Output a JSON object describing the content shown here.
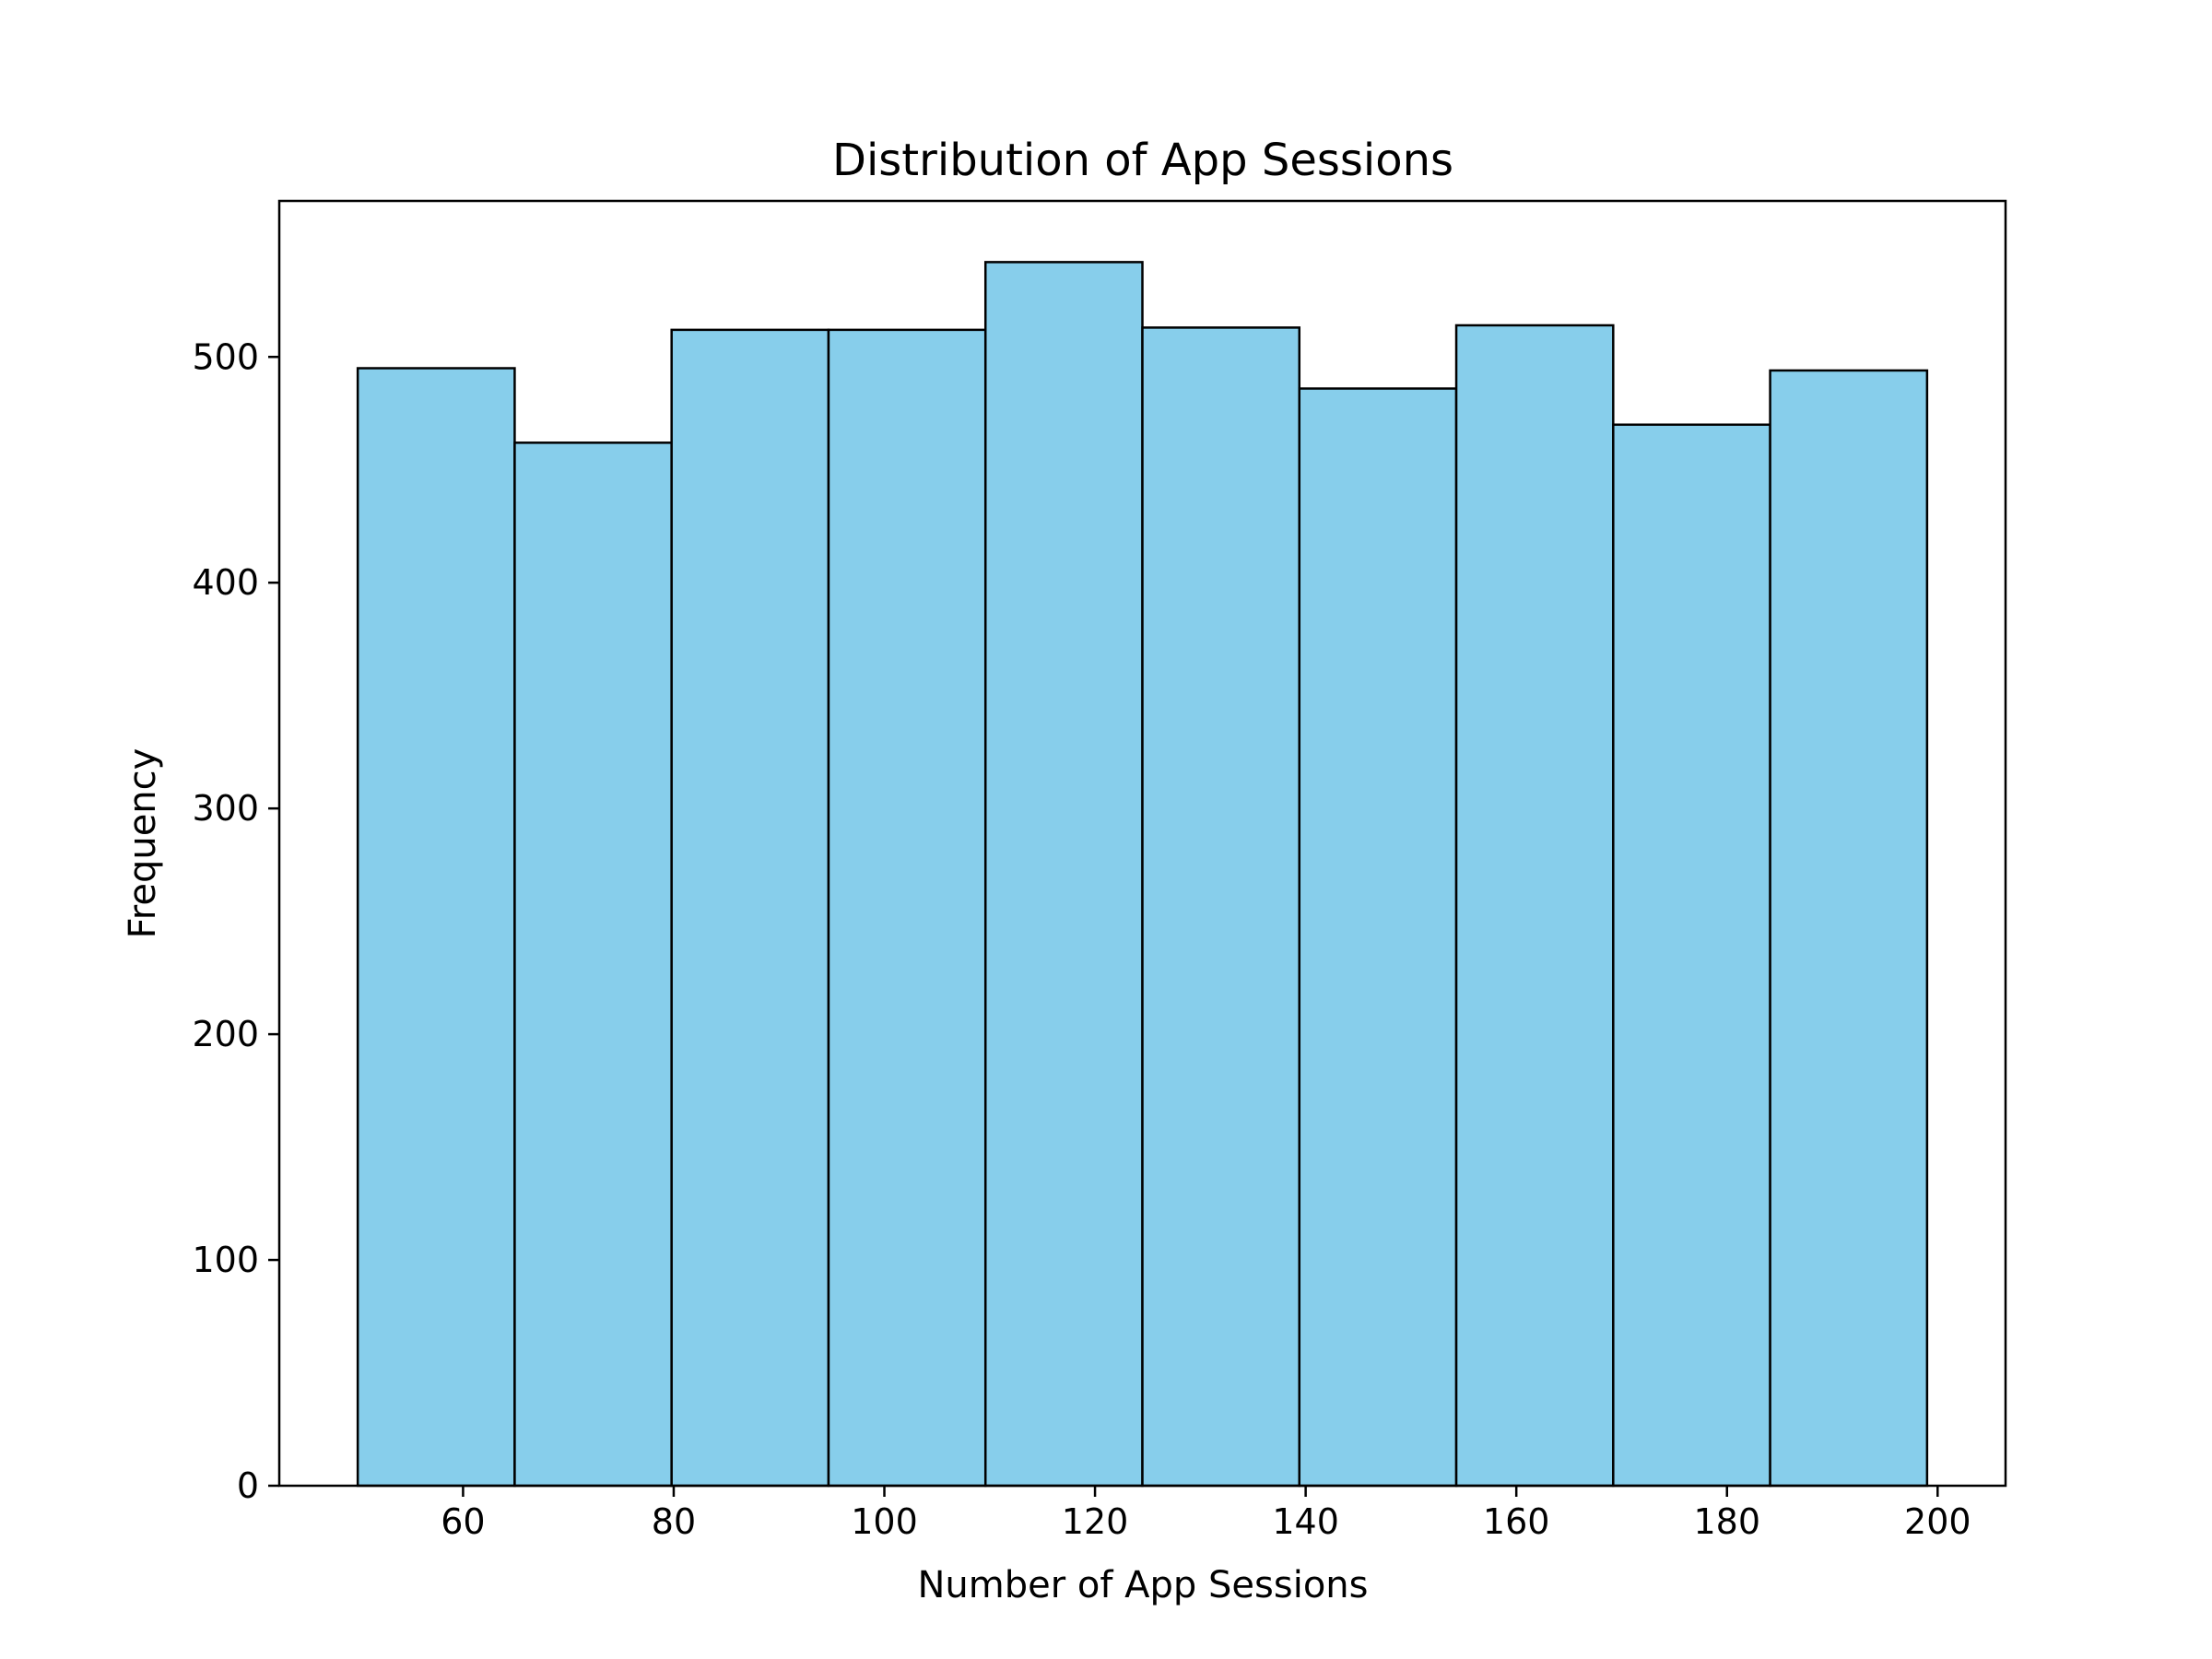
{
  "chart_data": {
    "type": "histogram",
    "title": "Distribution of App Sessions",
    "xlabel": "Number of App Sessions",
    "ylabel": "Frequency",
    "bin_edges": [
      50,
      64.9,
      79.8,
      94.7,
      109.6,
      124.5,
      139.4,
      154.3,
      169.2,
      184.1,
      199
    ],
    "values": [
      495,
      462,
      512,
      512,
      542,
      513,
      486,
      514,
      470,
      494
    ],
    "xlim": [
      42.55,
      206.45
    ],
    "ylim": [
      0,
      569.1
    ],
    "xticks": [
      60,
      80,
      100,
      120,
      140,
      160,
      180,
      200
    ],
    "yticks": [
      0,
      100,
      200,
      300,
      400,
      500
    ],
    "bar_color": "#87CEEB",
    "edge_color": "#000000"
  }
}
